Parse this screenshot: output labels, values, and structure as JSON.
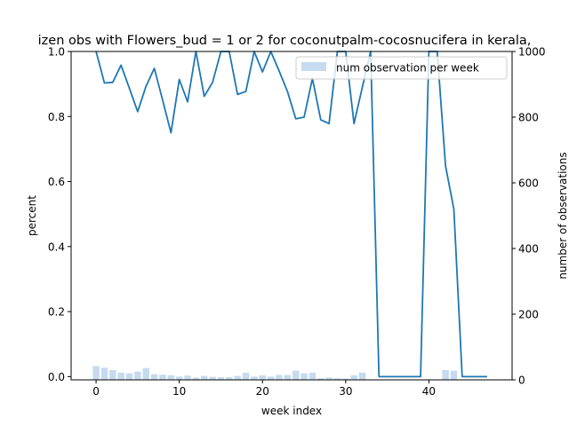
{
  "chart_data": {
    "type": "line",
    "title": "izen obs with Flowers_bud = 1 or 2 for coconutpalm-cocosnucifera in kerala,",
    "xlabel": "week index",
    "ylabel": "percent",
    "ylabel_right": "number of observations",
    "xlim": [
      -3,
      50
    ],
    "ylim": [
      -0.01,
      1.0
    ],
    "ylim_right": [
      0,
      1000
    ],
    "x_ticks": [
      0,
      10,
      20,
      30,
      40
    ],
    "y_ticks": [
      0.0,
      0.2,
      0.4,
      0.6,
      0.8,
      1.0
    ],
    "y_ticks_right": [
      0,
      200,
      400,
      600,
      800,
      1000
    ],
    "legend": {
      "label": "num observation per week",
      "position": "upper-right"
    },
    "grid": false,
    "colors": {
      "line": "#1f77b4",
      "bars": "#c6dbef"
    },
    "series": [
      {
        "kind": "line",
        "axis": "left",
        "x": [
          0,
          1,
          2,
          3,
          4,
          5,
          6,
          7,
          8,
          9,
          10,
          11,
          12,
          13,
          14,
          15,
          16,
          17,
          18,
          19,
          20,
          21,
          22,
          23,
          24,
          25,
          26,
          27,
          28,
          29,
          30,
          31,
          32,
          33,
          34,
          35,
          36,
          37,
          38,
          39,
          40,
          41,
          42,
          43,
          44,
          45,
          46,
          47
        ],
        "values": [
          1.0,
          0.903,
          0.905,
          0.958,
          0.887,
          0.815,
          0.893,
          0.948,
          0.85,
          0.75,
          0.914,
          0.845,
          1.0,
          0.862,
          0.905,
          1.0,
          1.0,
          0.868,
          0.877,
          1.0,
          0.937,
          1.0,
          0.94,
          0.877,
          0.793,
          0.798,
          0.917,
          0.79,
          0.778,
          1.0,
          1.0,
          0.778,
          0.89,
          1.0,
          0.0,
          0.0,
          0.0,
          0.0,
          0.0,
          0.0,
          1.0,
          1.0,
          0.648,
          0.515,
          0.0,
          0.0,
          0.0,
          0.0
        ]
      },
      {
        "kind": "bar",
        "axis": "right",
        "name": "num observation per week",
        "x": [
          0,
          1,
          2,
          3,
          4,
          5,
          6,
          7,
          8,
          9,
          10,
          11,
          12,
          13,
          14,
          15,
          16,
          17,
          18,
          19,
          20,
          21,
          22,
          23,
          24,
          25,
          26,
          27,
          28,
          29,
          30,
          31,
          32,
          33,
          34,
          35,
          36,
          37,
          38,
          39,
          40,
          41,
          42,
          43,
          44,
          45,
          46,
          47
        ],
        "values": [
          42,
          37,
          30,
          22,
          20,
          25,
          36,
          17,
          16,
          14,
          10,
          13,
          7,
          12,
          9,
          8,
          8,
          12,
          22,
          10,
          14,
          10,
          15,
          15,
          28,
          20,
          22,
          5,
          7,
          5,
          4,
          14,
          22,
          0,
          0,
          0,
          0,
          0,
          0,
          0,
          0,
          0,
          30,
          28,
          0,
          0,
          0,
          0
        ]
      }
    ]
  }
}
